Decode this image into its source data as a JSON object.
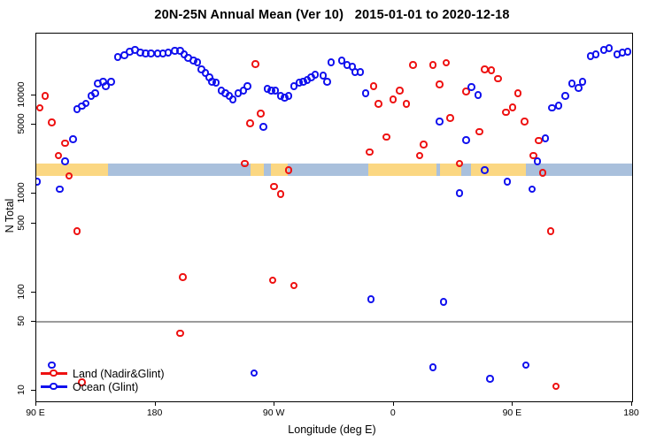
{
  "title": "20N-25N Annual Mean (Ver 10)   2015-01-01 to 2020-12-18",
  "colors": {
    "land": "#ee1111",
    "ocean": "#1111ee",
    "band_land": "#fbd782",
    "band_ocean": "#a9c0dc",
    "reference_line": "#9b9b9b",
    "axis": "#000000"
  },
  "legend": {
    "items": [
      {
        "label": "Land (Nadir&Glint)",
        "color": "#ee1111"
      },
      {
        "label": "Ocean (Glint)",
        "color": "#1111ee"
      }
    ]
  },
  "chart_data": {
    "type": "scatter",
    "title": "20N-25N Annual Mean (Ver 10)   2015-01-01 to 2020-12-18",
    "xlabel": "Longitude (deg E)",
    "ylabel": "N Total",
    "y_scale": "log",
    "ylim": [
      10,
      40000
    ],
    "x_axis_span_deg": 450,
    "x_axis_note": "x is degrees eastward from 90E; axis runs 90E,180,90W,0,90E,180",
    "x_ticks": [
      {
        "deg": 0,
        "label": "90 E"
      },
      {
        "deg": 90,
        "label": "180"
      },
      {
        "deg": 180,
        "label": "90 W"
      },
      {
        "deg": 270,
        "label": "0"
      },
      {
        "deg": 360,
        "label": "90 E"
      },
      {
        "deg": 450,
        "label": "180"
      }
    ],
    "y_ticks": [
      {
        "value": 10,
        "label": "10"
      },
      {
        "value": 50,
        "label": "50"
      },
      {
        "value": 100,
        "label": "100"
      },
      {
        "value": 500,
        "label": "500"
      },
      {
        "value": 1000,
        "label": "1000"
      },
      {
        "value": 5000,
        "label": "5000"
      },
      {
        "value": 10000,
        "label": "10000"
      }
    ],
    "reference_line": {
      "value": 50,
      "color": "#9b9b9b"
    },
    "surface_band": {
      "description": "surface-type strip near N=1700",
      "value_level": 1700,
      "ocean_color": "#a9c0dc",
      "land_color": "#fbd782",
      "ocean_extent_deg": [
        0,
        450
      ],
      "land_segments_deg": [
        [
          0,
          54
        ],
        [
          162,
          172
        ],
        [
          177,
          190
        ],
        [
          251,
          302
        ],
        [
          305,
          321
        ],
        [
          328,
          370
        ]
      ]
    },
    "series": [
      {
        "name": "Land (Nadir&Glint)",
        "color": "#ee1111",
        "points": [
          [
            7,
            9700
          ],
          [
            3,
            7300
          ],
          [
            12,
            5200
          ],
          [
            22,
            3200
          ],
          [
            17,
            2400
          ],
          [
            25,
            1500
          ],
          [
            31,
            410
          ],
          [
            35,
            12
          ],
          [
            166,
            20400
          ],
          [
            170,
            6400
          ],
          [
            162,
            5100
          ],
          [
            158,
            2000
          ],
          [
            191,
            1700
          ],
          [
            180,
            1160
          ],
          [
            185,
            980
          ],
          [
            111,
            140
          ],
          [
            179,
            130
          ],
          [
            195,
            115
          ],
          [
            109,
            38
          ],
          [
            255,
            12200
          ],
          [
            259,
            8000
          ],
          [
            270,
            8900
          ],
          [
            275,
            11000
          ],
          [
            280,
            8000
          ],
          [
            285,
            20000
          ],
          [
            300,
            20000
          ],
          [
            310,
            21000
          ],
          [
            305,
            12700
          ],
          [
            252,
            2600
          ],
          [
            265,
            3700
          ],
          [
            290,
            2400
          ],
          [
            293,
            3100
          ],
          [
            313,
            5800
          ],
          [
            325,
            10700
          ],
          [
            335,
            4200
          ],
          [
            320,
            2000
          ],
          [
            339,
            18000
          ],
          [
            344,
            17600
          ],
          [
            349,
            14400
          ],
          [
            364,
            10300
          ],
          [
            355,
            6600
          ],
          [
            360,
            7400
          ],
          [
            369,
            5300
          ],
          [
            380,
            3400
          ],
          [
            376,
            2400
          ],
          [
            383,
            1600
          ],
          [
            389,
            410
          ],
          [
            393,
            11
          ]
        ]
      },
      {
        "name": "Ocean (Glint)",
        "color": "#1111ee",
        "points": [
          [
            1,
            1300
          ],
          [
            18,
            1100
          ],
          [
            22,
            2100
          ],
          [
            28,
            3500
          ],
          [
            31,
            7100
          ],
          [
            35,
            7600
          ],
          [
            38,
            8100
          ],
          [
            42,
            9700
          ],
          [
            45,
            10300
          ],
          [
            47,
            12900
          ],
          [
            51,
            13500
          ],
          [
            53,
            12200
          ],
          [
            57,
            13500
          ],
          [
            62,
            24000
          ],
          [
            67,
            25100
          ],
          [
            71,
            27200
          ],
          [
            75,
            28400
          ],
          [
            79,
            26700
          ],
          [
            83,
            26100
          ],
          [
            87,
            26100
          ],
          [
            92,
            26100
          ],
          [
            96,
            26100
          ],
          [
            100,
            26700
          ],
          [
            105,
            27800
          ],
          [
            109,
            27800
          ],
          [
            112,
            25600
          ],
          [
            115,
            23500
          ],
          [
            119,
            22100
          ],
          [
            122,
            21200
          ],
          [
            125,
            18000
          ],
          [
            128,
            16600
          ],
          [
            131,
            15000
          ],
          [
            133,
            13500
          ],
          [
            136,
            13200
          ],
          [
            140,
            11000
          ],
          [
            143,
            10300
          ],
          [
            146,
            9700
          ],
          [
            149,
            8900
          ],
          [
            153,
            10300
          ],
          [
            157,
            11000
          ],
          [
            160,
            12200
          ],
          [
            172,
            4700
          ],
          [
            175,
            11400
          ],
          [
            178,
            11000
          ],
          [
            181,
            10900
          ],
          [
            185,
            9700
          ],
          [
            188,
            9300
          ],
          [
            191,
            9700
          ],
          [
            195,
            12200
          ],
          [
            199,
            13200
          ],
          [
            202,
            13500
          ],
          [
            205,
            14100
          ],
          [
            208,
            15000
          ],
          [
            211,
            15900
          ],
          [
            217,
            15600
          ],
          [
            220,
            13500
          ],
          [
            223,
            21200
          ],
          [
            231,
            22100
          ],
          [
            235,
            20000
          ],
          [
            239,
            19200
          ],
          [
            241,
            16900
          ],
          [
            245,
            16900
          ],
          [
            249,
            10300
          ],
          [
            305,
            5300
          ],
          [
            329,
            11900
          ],
          [
            334,
            9900
          ],
          [
            325,
            3450
          ],
          [
            320,
            1000
          ],
          [
            339,
            1700
          ],
          [
            356,
            1300
          ],
          [
            375,
            1100
          ],
          [
            385,
            3600
          ],
          [
            379,
            2100
          ],
          [
            390,
            7300
          ],
          [
            395,
            7700
          ],
          [
            400,
            9700
          ],
          [
            405,
            12900
          ],
          [
            410,
            11700
          ],
          [
            413,
            13500
          ],
          [
            419,
            24500
          ],
          [
            423,
            25600
          ],
          [
            429,
            28400
          ],
          [
            433,
            29600
          ],
          [
            439,
            25600
          ],
          [
            443,
            26700
          ],
          [
            447,
            27200
          ],
          [
            253,
            84
          ],
          [
            308,
            79
          ],
          [
            12,
            18
          ],
          [
            165,
            15
          ],
          [
            300,
            17
          ],
          [
            343,
            13
          ],
          [
            370,
            18
          ]
        ]
      }
    ]
  }
}
